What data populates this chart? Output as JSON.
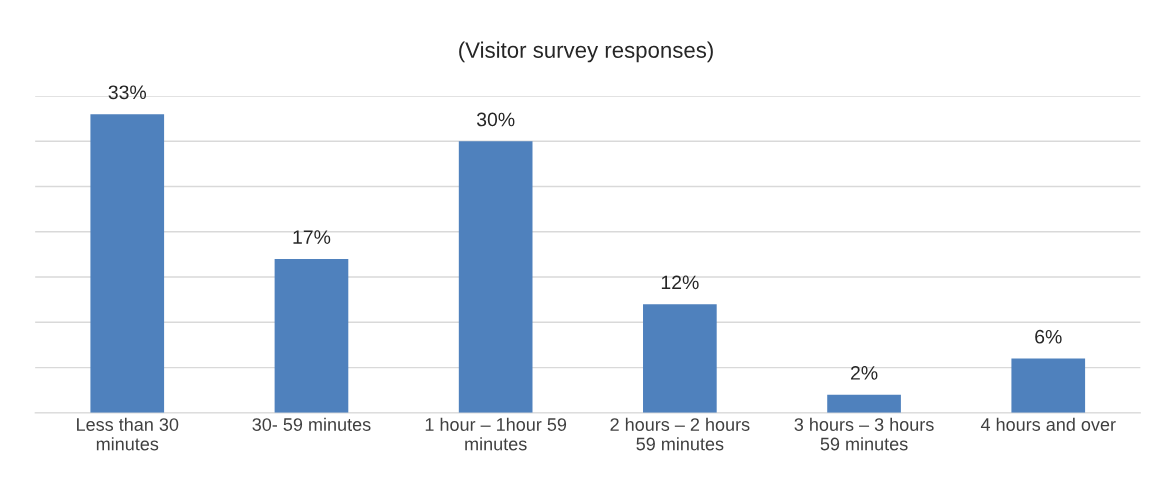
{
  "chart_data": {
    "type": "bar",
    "title": "(Visitor survey responses)",
    "categories": [
      "Less than 30\nminutes",
      "30- 59 minutes",
      "1 hour – 1hour 59\nminutes",
      "2 hours – 2 hours\n59 minutes",
      "3 hours – 3 hours\n59 minutes",
      "4 hours and over"
    ],
    "values": [
      33,
      17,
      30,
      12,
      2,
      6
    ],
    "color": "#4f81bd",
    "value_labels": [
      "33%",
      "17%",
      "30%",
      "12%",
      "2%",
      "6%"
    ],
    "ylim": [
      0,
      35
    ],
    "yticks": [
      {
        "value": 0,
        "label": null
      },
      {
        "value": 5,
        "label": null
      },
      {
        "value": 10,
        "label": null
      },
      {
        "value": 15,
        "label": null
      },
      {
        "value": 20,
        "label": null
      },
      {
        "value": 25,
        "label": null
      },
      {
        "value": 30,
        "label": null
      },
      {
        "value": 35,
        "label": null
      }
    ],
    "grid": "y",
    "tick_labels": "x"
  }
}
